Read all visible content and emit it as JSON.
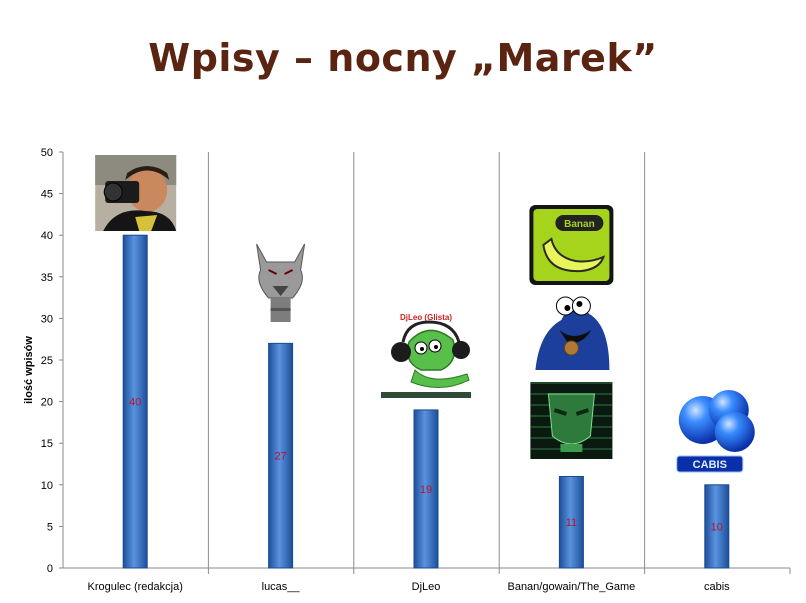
{
  "title": "Wpisy – nocny „Marek”",
  "chart_data": {
    "type": "bar",
    "title": "Wpisy – nocny „Marek”",
    "ylabel": "ilość wpisów",
    "xlabel": "",
    "ylim": [
      0,
      50
    ],
    "yticks": [
      0,
      5,
      10,
      15,
      20,
      25,
      30,
      35,
      40,
      45,
      50
    ],
    "grid": "vertical category separators",
    "categories": [
      "Krogulec (redakcja)",
      "lucas__",
      "DjLeo",
      "Banan/gowain/The_Game",
      "cabis"
    ],
    "values": [
      40,
      27,
      19,
      11,
      10
    ],
    "data_labels": [
      "40",
      "27",
      "19",
      "11",
      "10"
    ],
    "bar_color": "#3a78c9",
    "label_color": "#c0102a",
    "avatars": [
      {
        "category": "Krogulec (redakcja)",
        "icons": [
          "photographer-avatar-icon"
        ]
      },
      {
        "category": "lucas__",
        "icons": [
          "wolf-head-avatar-icon"
        ]
      },
      {
        "category": "DjLeo",
        "icons": [
          "dj-frog-avatar-icon"
        ],
        "caption": "DjLeo (Glista)"
      },
      {
        "category": "Banan/gowain/The_Game",
        "icons": [
          "banana-avatar-icon",
          "cookie-monster-avatar-icon",
          "green-mask-avatar-icon"
        ]
      },
      {
        "category": "cabis",
        "icons": [
          "blue-spheres-avatar-icon"
        ],
        "caption": "CABIS"
      }
    ]
  }
}
